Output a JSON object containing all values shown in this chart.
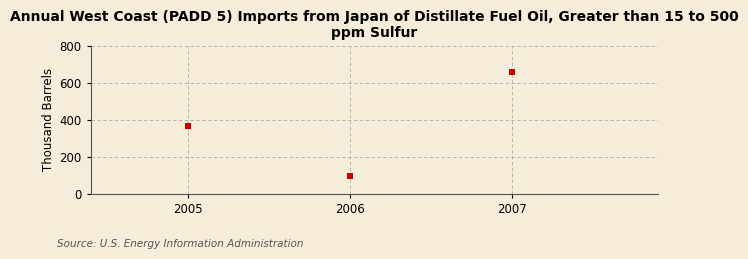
{
  "title": "Annual West Coast (PADD 5) Imports from Japan of Distillate Fuel Oil, Greater than 15 to 500\nppm Sulfur",
  "ylabel": "Thousand Barrels",
  "x": [
    2005,
    2006,
    2007
  ],
  "y": [
    369,
    97,
    657
  ],
  "ylim": [
    0,
    800
  ],
  "yticks": [
    0,
    200,
    400,
    600,
    800
  ],
  "xticks": [
    2005,
    2006,
    2007
  ],
  "marker_color": "#cc0000",
  "marker": "s",
  "marker_size": 4,
  "background_color": "#f5edd9",
  "plot_background_color": "#f5edd9",
  "grid_color": "#aaaaaa",
  "source_text": "Source: U.S. Energy Information Administration",
  "title_fontsize": 10,
  "axis_fontsize": 8.5,
  "source_fontsize": 7.5
}
